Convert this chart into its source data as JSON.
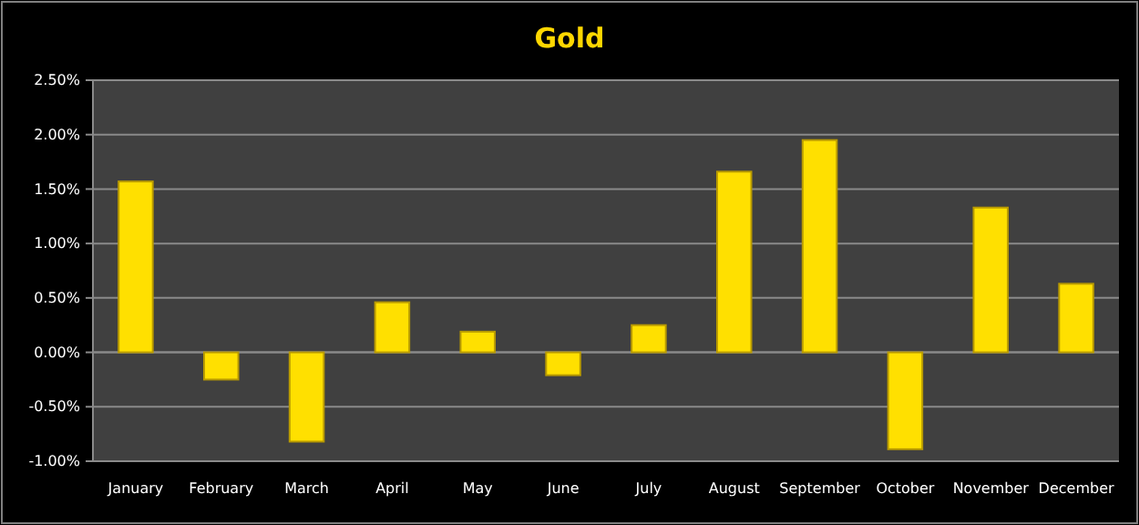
{
  "chart_data": {
    "type": "bar",
    "title": "Gold",
    "categories": [
      "January",
      "February",
      "March",
      "April",
      "May",
      "June",
      "July",
      "August",
      "September",
      "October",
      "November",
      "December"
    ],
    "values": [
      1.57,
      -0.25,
      -0.82,
      0.46,
      0.19,
      -0.21,
      0.25,
      1.66,
      1.95,
      -0.89,
      1.33,
      0.63
    ],
    "color": "#ffe000",
    "ylim": [
      -1,
      2.5
    ],
    "yticks": [
      {
        "value": -1,
        "label": "-1.00%"
      },
      {
        "value": -0.5,
        "label": "-0.50%"
      },
      {
        "value": 0,
        "label": "0.00%"
      },
      {
        "value": 0.5,
        "label": "0.50%"
      },
      {
        "value": 1,
        "label": "1.00%"
      },
      {
        "value": 1.5,
        "label": "1.50%"
      },
      {
        "value": 2,
        "label": "2.00%"
      },
      {
        "value": 2.5,
        "label": "2.50%"
      }
    ],
    "grid": "y"
  }
}
